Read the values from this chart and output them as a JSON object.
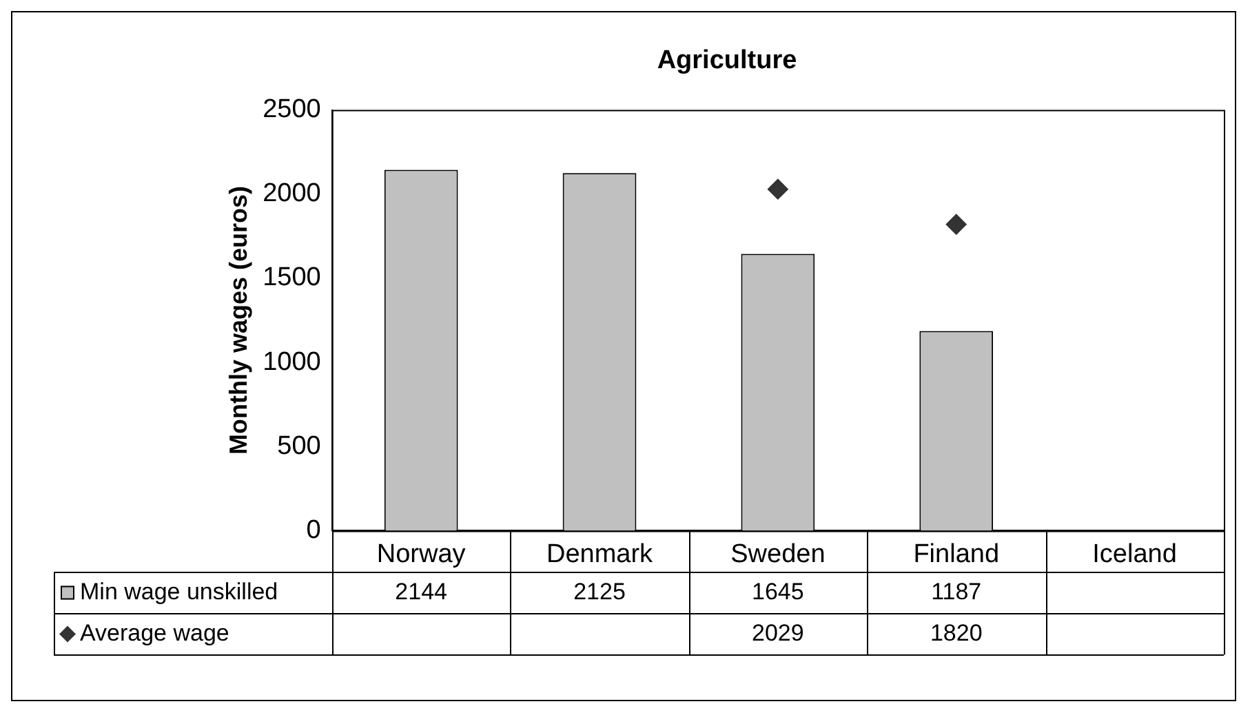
{
  "chart_data": {
    "type": "bar",
    "title": "Agriculture",
    "ylabel": "Monthly wages (euros)",
    "categories": [
      "Norway",
      "Denmark",
      "Sweden",
      "Finland",
      "Iceland"
    ],
    "series": [
      {
        "name": "Min wage unskilled",
        "color": "#c0c0c0",
        "values": [
          2144,
          2125,
          1645,
          1187,
          null
        ]
      },
      {
        "name": "Average wage",
        "type": "scatter",
        "color": "#333333",
        "marker": "diamond",
        "values": [
          null,
          null,
          2029,
          1820,
          null
        ]
      }
    ],
    "ylim": [
      0,
      2500
    ],
    "yticks": [
      0,
      500,
      1000,
      1500,
      2000,
      2500
    ],
    "grid": false,
    "legend": "bottom",
    "data_labels": true
  }
}
